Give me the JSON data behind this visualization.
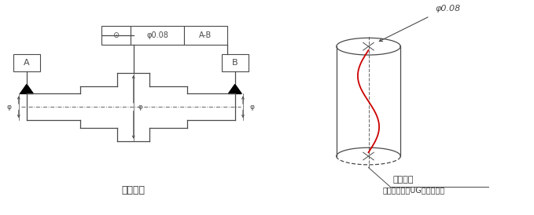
{
  "bg_color": "#ffffff",
  "line_color": "#4a4a4a",
  "red_color": "#cc0000",
  "text_color": "#333333",
  "left_label": "表示方法",
  "right_label": "公差带的含义UG编程大本营",
  "tolerance_sym": "©",
  "tolerance_val": "φ0.08",
  "tolerance_datum": "A-B",
  "datum_A": "A",
  "datum_B": "B",
  "phi_label": "φ",
  "datum_text": "基准轴线",
  "cyl_phi": "φ0.08"
}
